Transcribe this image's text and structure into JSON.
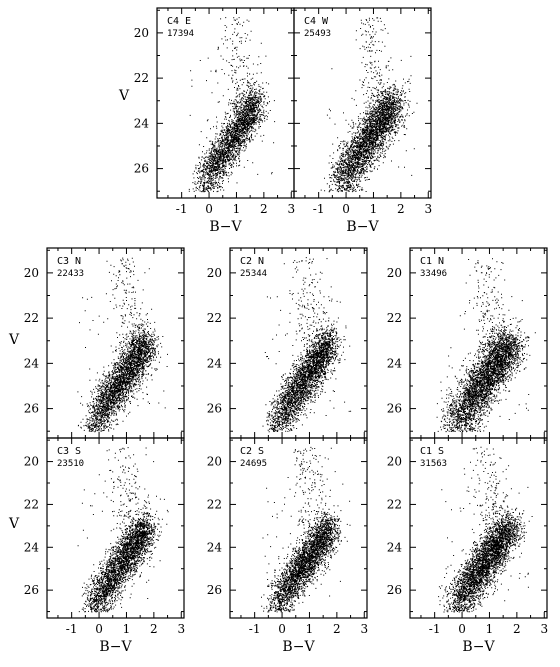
{
  "figure": {
    "x_label": "B−V",
    "y_label": "V",
    "x_ticks": [
      -1,
      0,
      1,
      2,
      3
    ],
    "y_ticks": [
      20,
      22,
      24,
      26
    ],
    "xlim": [
      -1.9,
      3.1
    ],
    "ylim": [
      27.3,
      18.9
    ],
    "point_color": "#000000"
  },
  "chart_data": [
    {
      "type": "scatter",
      "label": "C4 E",
      "count": "17394",
      "xlim": [
        -1.9,
        3.1
      ],
      "ylim": [
        27.3,
        18.9
      ]
    },
    {
      "type": "scatter",
      "label": "C4 W",
      "count": "25493",
      "xlim": [
        -1.9,
        3.1
      ],
      "ylim": [
        27.3,
        18.9
      ]
    },
    {
      "type": "scatter",
      "label": "C3 N",
      "count": "22433",
      "xlim": [
        -1.9,
        3.1
      ],
      "ylim": [
        27.3,
        18.9
      ]
    },
    {
      "type": "scatter",
      "label": "C2 N",
      "count": "25344",
      "xlim": [
        -1.9,
        3.1
      ],
      "ylim": [
        27.3,
        18.9
      ]
    },
    {
      "type": "scatter",
      "label": "C1 N",
      "count": "33496",
      "xlim": [
        -1.9,
        3.1
      ],
      "ylim": [
        27.3,
        18.9
      ]
    },
    {
      "type": "scatter",
      "label": "C3 S",
      "count": "23510",
      "xlim": [
        -1.9,
        3.1
      ],
      "ylim": [
        27.3,
        18.9
      ]
    },
    {
      "type": "scatter",
      "label": "C2 S",
      "count": "24695",
      "xlim": [
        -1.9,
        3.1
      ],
      "ylim": [
        27.3,
        18.9
      ]
    },
    {
      "type": "scatter",
      "label": "C1 S",
      "count": "31563",
      "xlim": [
        -1.9,
        3.1
      ],
      "ylim": [
        27.3,
        18.9
      ]
    }
  ]
}
